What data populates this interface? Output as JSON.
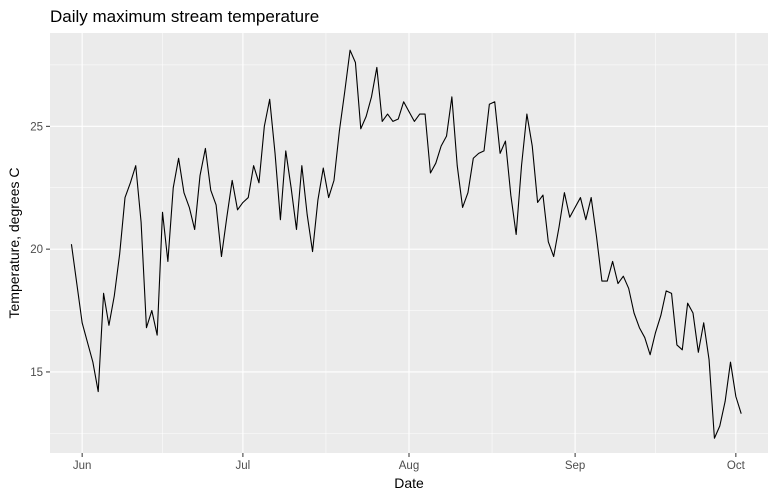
{
  "chart_data": {
    "type": "line",
    "title": "Daily maximum stream temperature",
    "xlabel": "Date",
    "ylabel": "Temperature, degrees C",
    "x_ticks": [
      {
        "date": "2015-06-01",
        "label": "Jun"
      },
      {
        "date": "2015-07-01",
        "label": "Jul"
      },
      {
        "date": "2015-08-01",
        "label": "Aug"
      },
      {
        "date": "2015-09-01",
        "label": "Sep"
      },
      {
        "date": "2015-10-01",
        "label": "Oct"
      }
    ],
    "y_ticks": [
      15,
      20,
      25
    ],
    "xlim": [
      "2015-05-26",
      "2015-10-07"
    ],
    "ylim": [
      11.7,
      28.8
    ],
    "grid": true,
    "legend": "none",
    "colors": {
      "panel": "#EBEBEB",
      "grid": "#FFFFFF",
      "line": "#000000",
      "tick_text": "#4D4D4D"
    },
    "series": [
      {
        "points": [
          [
            "2015-05-30",
            20.2
          ],
          [
            "2015-05-31",
            18.6
          ],
          [
            "2015-06-01",
            17.0
          ],
          [
            "2015-06-02",
            16.2
          ],
          [
            "2015-06-03",
            15.4
          ],
          [
            "2015-06-04",
            14.2
          ],
          [
            "2015-06-05",
            18.2
          ],
          [
            "2015-06-06",
            16.9
          ],
          [
            "2015-06-07",
            18.1
          ],
          [
            "2015-06-08",
            19.8
          ],
          [
            "2015-06-09",
            22.1
          ],
          [
            "2015-06-10",
            22.7
          ],
          [
            "2015-06-11",
            23.4
          ],
          [
            "2015-06-12",
            21.1
          ],
          [
            "2015-06-13",
            16.8
          ],
          [
            "2015-06-14",
            17.5
          ],
          [
            "2015-06-15",
            16.5
          ],
          [
            "2015-06-16",
            21.5
          ],
          [
            "2015-06-17",
            19.5
          ],
          [
            "2015-06-18",
            22.5
          ],
          [
            "2015-06-19",
            23.7
          ],
          [
            "2015-06-20",
            22.3
          ],
          [
            "2015-06-21",
            21.7
          ],
          [
            "2015-06-22",
            20.8
          ],
          [
            "2015-06-23",
            23.0
          ],
          [
            "2015-06-24",
            24.1
          ],
          [
            "2015-06-25",
            22.4
          ],
          [
            "2015-06-26",
            21.8
          ],
          [
            "2015-06-27",
            19.7
          ],
          [
            "2015-06-28",
            21.3
          ],
          [
            "2015-06-29",
            22.8
          ],
          [
            "2015-06-30",
            21.6
          ],
          [
            "2015-07-01",
            21.9
          ],
          [
            "2015-07-02",
            22.1
          ],
          [
            "2015-07-03",
            23.4
          ],
          [
            "2015-07-04",
            22.7
          ],
          [
            "2015-07-05",
            25.0
          ],
          [
            "2015-07-06",
            26.1
          ],
          [
            "2015-07-07",
            23.9
          ],
          [
            "2015-07-08",
            21.2
          ],
          [
            "2015-07-09",
            24.0
          ],
          [
            "2015-07-10",
            22.5
          ],
          [
            "2015-07-11",
            20.8
          ],
          [
            "2015-07-12",
            23.4
          ],
          [
            "2015-07-13",
            21.4
          ],
          [
            "2015-07-14",
            19.9
          ],
          [
            "2015-07-15",
            22.0
          ],
          [
            "2015-07-16",
            23.3
          ],
          [
            "2015-07-17",
            22.1
          ],
          [
            "2015-07-18",
            22.8
          ],
          [
            "2015-07-19",
            24.8
          ],
          [
            "2015-07-20",
            26.4
          ],
          [
            "2015-07-21",
            28.1
          ],
          [
            "2015-07-22",
            27.6
          ],
          [
            "2015-07-23",
            24.9
          ],
          [
            "2015-07-24",
            25.4
          ],
          [
            "2015-07-25",
            26.2
          ],
          [
            "2015-07-26",
            27.4
          ],
          [
            "2015-07-27",
            25.2
          ],
          [
            "2015-07-28",
            25.5
          ],
          [
            "2015-07-29",
            25.2
          ],
          [
            "2015-07-30",
            25.3
          ],
          [
            "2015-07-31",
            26.0
          ],
          [
            "2015-08-01",
            25.6
          ],
          [
            "2015-08-02",
            25.2
          ],
          [
            "2015-08-03",
            25.5
          ],
          [
            "2015-08-04",
            25.5
          ],
          [
            "2015-08-05",
            23.1
          ],
          [
            "2015-08-06",
            23.5
          ],
          [
            "2015-08-07",
            24.2
          ],
          [
            "2015-08-08",
            24.6
          ],
          [
            "2015-08-09",
            26.2
          ],
          [
            "2015-08-10",
            23.4
          ],
          [
            "2015-08-11",
            21.7
          ],
          [
            "2015-08-12",
            22.3
          ],
          [
            "2015-08-13",
            23.7
          ],
          [
            "2015-08-14",
            23.9
          ],
          [
            "2015-08-15",
            24.0
          ],
          [
            "2015-08-16",
            25.9
          ],
          [
            "2015-08-17",
            26.0
          ],
          [
            "2015-08-18",
            23.9
          ],
          [
            "2015-08-19",
            24.4
          ],
          [
            "2015-08-20",
            22.2
          ],
          [
            "2015-08-21",
            20.6
          ],
          [
            "2015-08-22",
            23.4
          ],
          [
            "2015-08-23",
            25.5
          ],
          [
            "2015-08-24",
            24.2
          ],
          [
            "2015-08-25",
            21.9
          ],
          [
            "2015-08-26",
            22.2
          ],
          [
            "2015-08-27",
            20.3
          ],
          [
            "2015-08-28",
            19.7
          ],
          [
            "2015-08-29",
            20.9
          ],
          [
            "2015-08-30",
            22.3
          ],
          [
            "2015-08-31",
            21.3
          ],
          [
            "2015-09-01",
            21.7
          ],
          [
            "2015-09-02",
            22.1
          ],
          [
            "2015-09-03",
            21.2
          ],
          [
            "2015-09-04",
            22.1
          ],
          [
            "2015-09-05",
            20.5
          ],
          [
            "2015-09-06",
            18.7
          ],
          [
            "2015-09-07",
            18.7
          ],
          [
            "2015-09-08",
            19.5
          ],
          [
            "2015-09-09",
            18.6
          ],
          [
            "2015-09-10",
            18.9
          ],
          [
            "2015-09-11",
            18.4
          ],
          [
            "2015-09-12",
            17.4
          ],
          [
            "2015-09-13",
            16.8
          ],
          [
            "2015-09-14",
            16.4
          ],
          [
            "2015-09-15",
            15.7
          ],
          [
            "2015-09-16",
            16.6
          ],
          [
            "2015-09-17",
            17.3
          ],
          [
            "2015-09-18",
            18.3
          ],
          [
            "2015-09-19",
            18.2
          ],
          [
            "2015-09-20",
            16.1
          ],
          [
            "2015-09-21",
            15.9
          ],
          [
            "2015-09-22",
            17.8
          ],
          [
            "2015-09-23",
            17.4
          ],
          [
            "2015-09-24",
            15.8
          ],
          [
            "2015-09-25",
            17.0
          ],
          [
            "2015-09-26",
            15.5
          ],
          [
            "2015-09-27",
            12.3
          ],
          [
            "2015-09-28",
            12.8
          ],
          [
            "2015-09-29",
            13.8
          ],
          [
            "2015-09-30",
            15.4
          ],
          [
            "2015-10-01",
            14.0
          ],
          [
            "2015-10-02",
            13.3
          ]
        ]
      }
    ]
  }
}
